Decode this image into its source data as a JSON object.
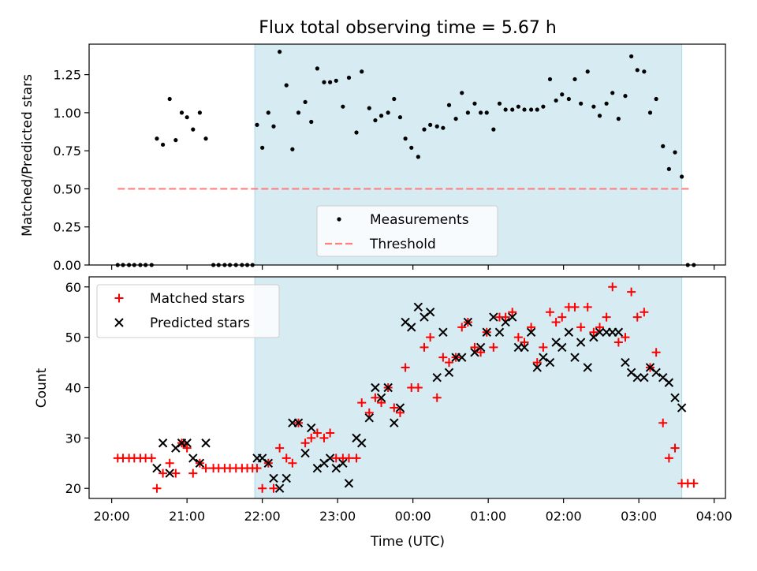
{
  "chart_data": [
    {
      "type": "scatter",
      "title": "Flux total observing time = 5.67 h",
      "ylabel": "Matched/Predicted stars",
      "xlabel": "",
      "xunit": "hours since 20:00 UTC",
      "xlim": [
        -0.3,
        8.15
      ],
      "ylim": [
        0,
        1.45
      ],
      "yticks": [
        "0.00",
        "0.25",
        "0.50",
        "0.75",
        "1.00",
        "1.25"
      ],
      "ytick_values": [
        0,
        0.25,
        0.5,
        0.75,
        1.0,
        1.25
      ],
      "shaded_span": [
        1.9,
        7.57
      ],
      "shaded_color": "#add8e6",
      "legend_position": "lower center",
      "threshold": {
        "name": "Threshold",
        "y": 0.5,
        "x_range": [
          0.08,
          7.7
        ],
        "color": "#ff7f7f"
      },
      "series": [
        {
          "name": "Measurements",
          "color": "#000000",
          "points": [
            [
              0.08,
              0
            ],
            [
              0.15,
              0
            ],
            [
              0.23,
              0
            ],
            [
              0.3,
              0
            ],
            [
              0.38,
              0
            ],
            [
              0.45,
              0
            ],
            [
              0.53,
              0
            ],
            [
              0.6,
              0.83
            ],
            [
              0.68,
              0.79
            ],
            [
              0.77,
              1.09
            ],
            [
              0.85,
              0.82
            ],
            [
              0.93,
              1.0
            ],
            [
              1.0,
              0.97
            ],
            [
              1.08,
              0.89
            ],
            [
              1.17,
              1.0
            ],
            [
              1.25,
              0.83
            ],
            [
              1.35,
              0
            ],
            [
              1.42,
              0
            ],
            [
              1.5,
              0
            ],
            [
              1.57,
              0
            ],
            [
              1.65,
              0
            ],
            [
              1.73,
              0
            ],
            [
              1.8,
              0
            ],
            [
              1.87,
              0
            ],
            [
              1.93,
              0.92
            ],
            [
              2.0,
              0.77
            ],
            [
              2.08,
              1.0
            ],
            [
              2.15,
              0.91
            ],
            [
              2.23,
              1.4
            ],
            [
              2.32,
              1.18
            ],
            [
              2.4,
              0.76
            ],
            [
              2.48,
              1.0
            ],
            [
              2.57,
              1.07
            ],
            [
              2.65,
              0.94
            ],
            [
              2.73,
              1.29
            ],
            [
              2.82,
              1.2
            ],
            [
              2.9,
              1.2
            ],
            [
              2.98,
              1.21
            ],
            [
              3.07,
              1.04
            ],
            [
              3.15,
              1.23
            ],
            [
              3.25,
              0.87
            ],
            [
              3.32,
              1.27
            ],
            [
              3.42,
              1.03
            ],
            [
              3.5,
              0.95
            ],
            [
              3.58,
              0.98
            ],
            [
              3.67,
              1.0
            ],
            [
              3.75,
              1.09
            ],
            [
              3.83,
              0.97
            ],
            [
              3.9,
              0.83
            ],
            [
              3.98,
              0.77
            ],
            [
              4.07,
              0.71
            ],
            [
              4.15,
              0.89
            ],
            [
              4.23,
              0.92
            ],
            [
              4.32,
              0.91
            ],
            [
              4.4,
              0.9
            ],
            [
              4.48,
              1.05
            ],
            [
              4.57,
              0.96
            ],
            [
              4.65,
              1.13
            ],
            [
              4.73,
              1.0
            ],
            [
              4.82,
              1.06
            ],
            [
              4.9,
              1.0
            ],
            [
              4.98,
              1.0
            ],
            [
              5.07,
              0.89
            ],
            [
              5.15,
              1.06
            ],
            [
              5.23,
              1.02
            ],
            [
              5.32,
              1.02
            ],
            [
              5.4,
              1.04
            ],
            [
              5.48,
              1.02
            ],
            [
              5.57,
              1.02
            ],
            [
              5.65,
              1.02
            ],
            [
              5.73,
              1.04
            ],
            [
              5.82,
              1.22
            ],
            [
              5.9,
              1.08
            ],
            [
              5.98,
              1.12
            ],
            [
              6.07,
              1.09
            ],
            [
              6.15,
              1.22
            ],
            [
              6.23,
              1.06
            ],
            [
              6.32,
              1.27
            ],
            [
              6.4,
              1.04
            ],
            [
              6.48,
              0.98
            ],
            [
              6.57,
              1.06
            ],
            [
              6.65,
              1.13
            ],
            [
              6.73,
              0.96
            ],
            [
              6.82,
              1.11
            ],
            [
              6.9,
              1.37
            ],
            [
              6.98,
              1.28
            ],
            [
              7.07,
              1.27
            ],
            [
              7.15,
              1.0
            ],
            [
              7.23,
              1.09
            ],
            [
              7.32,
              0.78
            ],
            [
              7.4,
              0.63
            ],
            [
              7.48,
              0.74
            ],
            [
              7.57,
              0.58
            ],
            [
              7.65,
              0
            ],
            [
              7.73,
              0
            ]
          ]
        }
      ]
    },
    {
      "type": "scatter",
      "title": "",
      "ylabel": "Count",
      "xlabel": "Time (UTC)",
      "xunit": "hours since 20:00 UTC",
      "xlim": [
        -0.3,
        8.15
      ],
      "ylim": [
        18,
        62
      ],
      "yticks": [
        "20",
        "30",
        "40",
        "50",
        "60"
      ],
      "ytick_values": [
        20,
        30,
        40,
        50,
        60
      ],
      "xticks": [
        "20:00",
        "21:00",
        "22:00",
        "23:00",
        "00:00",
        "01:00",
        "02:00",
        "03:00",
        "04:00"
      ],
      "xtick_values": [
        0,
        1,
        2,
        3,
        4,
        5,
        6,
        7,
        8
      ],
      "shaded_span": [
        1.9,
        7.57
      ],
      "shaded_color": "#add8e6",
      "legend_position": "upper left",
      "series": [
        {
          "name": "Matched stars",
          "color": "#ff0000",
          "marker": "+",
          "points": [
            [
              0.08,
              26
            ],
            [
              0.15,
              26
            ],
            [
              0.23,
              26
            ],
            [
              0.3,
              26
            ],
            [
              0.38,
              26
            ],
            [
              0.45,
              26
            ],
            [
              0.53,
              26
            ],
            [
              0.6,
              20
            ],
            [
              0.68,
              23
            ],
            [
              0.77,
              25
            ],
            [
              0.85,
              23
            ],
            [
              0.93,
              29
            ],
            [
              1.0,
              28
            ],
            [
              1.08,
              23
            ],
            [
              1.17,
              25
            ],
            [
              1.25,
              24
            ],
            [
              1.35,
              24
            ],
            [
              1.42,
              24
            ],
            [
              1.5,
              24
            ],
            [
              1.57,
              24
            ],
            [
              1.65,
              24
            ],
            [
              1.73,
              24
            ],
            [
              1.8,
              24
            ],
            [
              1.87,
              24
            ],
            [
              1.93,
              24
            ],
            [
              2.0,
              20
            ],
            [
              2.08,
              25
            ],
            [
              2.15,
              20
            ],
            [
              2.23,
              28
            ],
            [
              2.32,
              26
            ],
            [
              2.4,
              25
            ],
            [
              2.48,
              33
            ],
            [
              2.57,
              29
            ],
            [
              2.65,
              30
            ],
            [
              2.73,
              31
            ],
            [
              2.82,
              30
            ],
            [
              2.9,
              31
            ],
            [
              2.98,
              26
            ],
            [
              3.07,
              26
            ],
            [
              3.15,
              26
            ],
            [
              3.25,
              26
            ],
            [
              3.32,
              37
            ],
            [
              3.42,
              35
            ],
            [
              3.5,
              38
            ],
            [
              3.58,
              37
            ],
            [
              3.67,
              40
            ],
            [
              3.75,
              36
            ],
            [
              3.83,
              35
            ],
            [
              3.9,
              44
            ],
            [
              3.98,
              40
            ],
            [
              4.07,
              40
            ],
            [
              4.15,
              48
            ],
            [
              4.23,
              50
            ],
            [
              4.32,
              38
            ],
            [
              4.4,
              46
            ],
            [
              4.48,
              45
            ],
            [
              4.57,
              46
            ],
            [
              4.65,
              52
            ],
            [
              4.73,
              53
            ],
            [
              4.82,
              48
            ],
            [
              4.9,
              47
            ],
            [
              4.98,
              51
            ],
            [
              5.07,
              48
            ],
            [
              5.15,
              54
            ],
            [
              5.23,
              54
            ],
            [
              5.32,
              55
            ],
            [
              5.4,
              50
            ],
            [
              5.48,
              49
            ],
            [
              5.57,
              52
            ],
            [
              5.65,
              45
            ],
            [
              5.73,
              48
            ],
            [
              5.82,
              55
            ],
            [
              5.9,
              53
            ],
            [
              5.98,
              54
            ],
            [
              6.07,
              56
            ],
            [
              6.15,
              56
            ],
            [
              6.23,
              52
            ],
            [
              6.32,
              56
            ],
            [
              6.4,
              51
            ],
            [
              6.48,
              52
            ],
            [
              6.57,
              54
            ],
            [
              6.65,
              60
            ],
            [
              6.73,
              49
            ],
            [
              6.82,
              50
            ],
            [
              6.9,
              59
            ],
            [
              6.98,
              54
            ],
            [
              7.07,
              55
            ],
            [
              7.15,
              44
            ],
            [
              7.23,
              47
            ],
            [
              7.32,
              33
            ],
            [
              7.4,
              26
            ],
            [
              7.48,
              28
            ],
            [
              7.57,
              21
            ],
            [
              7.65,
              21
            ],
            [
              7.73,
              21
            ]
          ]
        },
        {
          "name": "Predicted stars",
          "color": "#000000",
          "marker": "x",
          "points": [
            [
              0.6,
              24
            ],
            [
              0.68,
              29
            ],
            [
              0.77,
              23
            ],
            [
              0.85,
              28
            ],
            [
              0.93,
              29
            ],
            [
              1.0,
              29
            ],
            [
              1.08,
              26
            ],
            [
              1.17,
              25
            ],
            [
              1.25,
              29
            ],
            [
              1.93,
              26
            ],
            [
              2.0,
              26
            ],
            [
              2.08,
              25
            ],
            [
              2.15,
              22
            ],
            [
              2.23,
              20
            ],
            [
              2.32,
              22
            ],
            [
              2.4,
              33
            ],
            [
              2.48,
              33
            ],
            [
              2.57,
              27
            ],
            [
              2.65,
              32
            ],
            [
              2.73,
              24
            ],
            [
              2.82,
              25
            ],
            [
              2.9,
              26
            ],
            [
              2.98,
              24
            ],
            [
              3.07,
              25
            ],
            [
              3.15,
              21
            ],
            [
              3.25,
              30
            ],
            [
              3.32,
              29
            ],
            [
              3.42,
              34
            ],
            [
              3.5,
              40
            ],
            [
              3.58,
              38
            ],
            [
              3.67,
              40
            ],
            [
              3.75,
              33
            ],
            [
              3.83,
              36
            ],
            [
              3.9,
              53
            ],
            [
              3.98,
              52
            ],
            [
              4.07,
              56
            ],
            [
              4.15,
              54
            ],
            [
              4.23,
              55
            ],
            [
              4.32,
              42
            ],
            [
              4.4,
              51
            ],
            [
              4.48,
              43
            ],
            [
              4.57,
              46
            ],
            [
              4.65,
              46
            ],
            [
              4.73,
              53
            ],
            [
              4.82,
              47
            ],
            [
              4.9,
              48
            ],
            [
              4.98,
              51
            ],
            [
              5.07,
              54
            ],
            [
              5.15,
              51
            ],
            [
              5.23,
              53
            ],
            [
              5.32,
              54
            ],
            [
              5.4,
              48
            ],
            [
              5.48,
              48
            ],
            [
              5.57,
              51
            ],
            [
              5.65,
              44
            ],
            [
              5.73,
              46
            ],
            [
              5.82,
              45
            ],
            [
              5.9,
              49
            ],
            [
              5.98,
              48
            ],
            [
              6.07,
              51
            ],
            [
              6.15,
              46
            ],
            [
              6.23,
              49
            ],
            [
              6.32,
              44
            ],
            [
              6.4,
              50
            ],
            [
              6.48,
              51
            ],
            [
              6.57,
              51
            ],
            [
              6.65,
              51
            ],
            [
              6.73,
              51
            ],
            [
              6.82,
              45
            ],
            [
              6.9,
              43
            ],
            [
              6.98,
              42
            ],
            [
              7.07,
              42
            ],
            [
              7.15,
              44
            ],
            [
              7.23,
              43
            ],
            [
              7.32,
              42
            ],
            [
              7.4,
              41
            ],
            [
              7.48,
              38
            ],
            [
              7.57,
              36
            ]
          ]
        }
      ]
    }
  ]
}
